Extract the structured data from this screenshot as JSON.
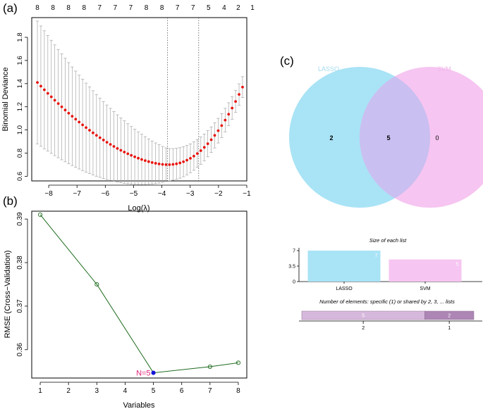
{
  "panels": {
    "a": {
      "label": "(a)"
    },
    "b": {
      "label": "(b)"
    },
    "c": {
      "label": "(c)"
    }
  },
  "chart_data": [
    {
      "id": "lasso-cv",
      "type": "scatter",
      "xlabel": "Log(λ)",
      "ylabel": "Binomial Deviance",
      "xlim": [
        -8.6,
        -1.0
      ],
      "ylim": [
        0.56,
        1.97
      ],
      "x_ticks": [
        -8,
        -7,
        -6,
        -5,
        -4,
        -3,
        -2,
        -1
      ],
      "y_ticks": [
        "0.6",
        "0.8",
        "1.0",
        "1.2",
        "1.4",
        "1.6",
        "1.8"
      ],
      "top_axis_labels": [
        {
          "x": -8.4,
          "text": "8"
        },
        {
          "x": -7.85,
          "text": "8"
        },
        {
          "x": -7.3,
          "text": "8"
        },
        {
          "x": -6.75,
          "text": "8"
        },
        {
          "x": -6.2,
          "text": "7"
        },
        {
          "x": -5.65,
          "text": "7"
        },
        {
          "x": -5.1,
          "text": "7"
        },
        {
          "x": -4.55,
          "text": "8"
        },
        {
          "x": -4.0,
          "text": "8"
        },
        {
          "x": -3.45,
          "text": "7"
        },
        {
          "x": -2.9,
          "text": "7"
        },
        {
          "x": -2.35,
          "text": "5"
        },
        {
          "x": -1.8,
          "text": "4"
        },
        {
          "x": -1.3,
          "text": "2"
        },
        {
          "x": -0.8,
          "text": "1"
        }
      ],
      "lambda_min": -3.8,
      "lambda_1se": -2.7,
      "curve": {
        "x_start": -8.4,
        "x_end": -1.15,
        "n_points": 60,
        "min_x": -3.8,
        "y_start": 1.41,
        "y_min": 0.7,
        "y_end": 1.37,
        "err_start": 0.53,
        "err_min": 0.14,
        "err_end": 0.09
      },
      "grid": false,
      "point_color": "#e8120c",
      "errorbar_color": "#a6a6a6"
    },
    {
      "id": "svm-rfe",
      "type": "line",
      "xlabel": "Variables",
      "ylabel": "RMSE (Cross−Validation)",
      "x": [
        1,
        3,
        5,
        7,
        8
      ],
      "y": [
        0.391,
        0.375,
        0.3547,
        0.3561,
        0.357
      ],
      "xlim": [
        0.7,
        8.3
      ],
      "ylim": [
        0.3535,
        0.3918
      ],
      "x_ticks": [
        1,
        2,
        3,
        4,
        5,
        6,
        7,
        8
      ],
      "y_ticks": [
        0.36,
        0.37,
        0.38,
        0.39
      ],
      "best": {
        "x": 5,
        "y": 0.3547,
        "label": "N=5"
      },
      "line_color": "#1e6b1e",
      "best_color": "#1515d8",
      "annot_color": "#e0247a",
      "grid": false
    },
    {
      "id": "venn",
      "type": "venn",
      "sets": [
        {
          "name": "LASSO",
          "color": "#a9e3f6",
          "label_color": "#a3dcf0"
        },
        {
          "name": "SVM",
          "color": "#f6c5f1",
          "label_color": "#f1b7ec"
        }
      ],
      "regions": {
        "left_only": "2",
        "both": "5",
        "right_only": "0"
      },
      "overlap_color": "#c9bff0"
    },
    {
      "id": "list-sizes",
      "type": "bar",
      "title": "Size of each list",
      "categories": [
        "LASSO",
        "SVM"
      ],
      "values": [
        7,
        5
      ],
      "bar_labels": [
        "7",
        "5"
      ],
      "y_ticks": [
        "0",
        "3.5",
        "7"
      ],
      "ylim": [
        0,
        7
      ],
      "colors": [
        "#a9e3f6",
        "#f6c5f1"
      ]
    },
    {
      "id": "shared-elements",
      "type": "bar",
      "title": "Number of elements: specific (1) or shared by 2, 3, ... lists",
      "segments": [
        {
          "label": "2",
          "value": 5,
          "bar_label": "5",
          "color": "#d7b8dd"
        },
        {
          "label": "1",
          "value": 2,
          "bar_label": "2",
          "color": "#ad86b5"
        }
      ]
    }
  ]
}
